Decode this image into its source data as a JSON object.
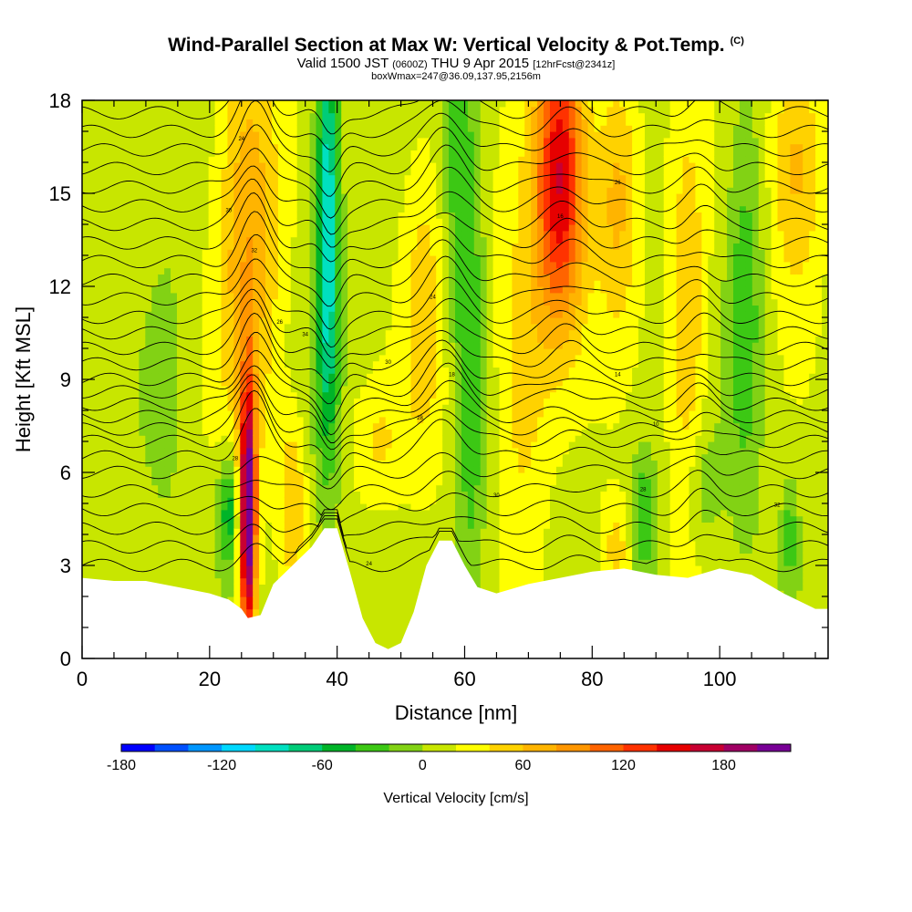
{
  "header": {
    "title": "Wind-Parallel Section at Max W: Vertical Velocity & Pot.Temp.",
    "copyright": "(C)",
    "valid_prefix": "Valid 1500 JST",
    "valid_utc": "(0600Z)",
    "valid_date": "THU 9 Apr 2015",
    "forecast": "[12hrFcst@2341z]",
    "box_info": "boxWmax=247@36.09,137.95,2156m"
  },
  "chart_data": {
    "type": "heatmap",
    "xlabel": "Distance [nm]",
    "ylabel": "Height [Kft MSL]",
    "xlim": [
      0,
      117
    ],
    "ylim": [
      0,
      18
    ],
    "x_ticks": [
      0,
      20,
      40,
      60,
      80,
      100
    ],
    "y_ticks": [
      0,
      3,
      6,
      9,
      12,
      15,
      18
    ],
    "colorbar": {
      "label": "Vertical Velocity [cm/s]",
      "range": [
        -180,
        220
      ],
      "tick_values": [
        -180,
        -120,
        -60,
        0,
        60,
        120,
        180
      ],
      "colors": [
        "#0000ff",
        "#0050ff",
        "#0096ff",
        "#00d8ff",
        "#00e0c0",
        "#00cc78",
        "#00b428",
        "#3cc814",
        "#82d214",
        "#c8e600",
        "#ffff00",
        "#ffd200",
        "#ffb400",
        "#ff9600",
        "#ff6400",
        "#ff3200",
        "#e60000",
        "#c80032",
        "#a00064",
        "#780096"
      ]
    },
    "terrain_kft": [
      [
        0,
        2.6
      ],
      [
        5,
        2.5
      ],
      [
        10,
        2.5
      ],
      [
        15,
        2.3
      ],
      [
        20,
        2.1
      ],
      [
        23,
        1.9
      ],
      [
        25,
        1.6
      ],
      [
        26,
        1.3
      ],
      [
        28,
        1.4
      ],
      [
        30,
        2.4
      ],
      [
        33,
        3.0
      ],
      [
        36,
        3.6
      ],
      [
        38,
        4.2
      ],
      [
        40,
        4.2
      ],
      [
        42,
        2.8
      ],
      [
        44,
        1.3
      ],
      [
        46,
        0.5
      ],
      [
        48,
        0.3
      ],
      [
        50,
        0.5
      ],
      [
        52,
        1.5
      ],
      [
        54,
        3.0
      ],
      [
        56,
        3.8
      ],
      [
        58,
        3.8
      ],
      [
        60,
        3.0
      ],
      [
        62,
        2.3
      ],
      [
        65,
        2.1
      ],
      [
        70,
        2.4
      ],
      [
        75,
        2.6
      ],
      [
        80,
        2.8
      ],
      [
        85,
        2.9
      ],
      [
        90,
        2.7
      ],
      [
        95,
        2.6
      ],
      [
        100,
        2.9
      ],
      [
        105,
        2.7
      ],
      [
        110,
        2.1
      ],
      [
        115,
        1.6
      ],
      [
        117,
        1.6
      ]
    ],
    "updrafts": [
      {
        "x": 26,
        "z": 4.5,
        "sx": 0.9,
        "sz": 3.0,
        "w": 225
      },
      {
        "x": 26,
        "z": 14,
        "sx": 3.5,
        "sz": 5.0,
        "w": 70
      },
      {
        "x": 33,
        "z": 5,
        "sx": 1.5,
        "sz": 2.0,
        "w": 50
      },
      {
        "x": 54,
        "z": 12,
        "sx": 3.0,
        "sz": 4.0,
        "w": 40
      },
      {
        "x": 75,
        "z": 15.5,
        "sx": 2.8,
        "sz": 3.5,
        "w": 150
      },
      {
        "x": 69,
        "z": 9,
        "sx": 3.0,
        "sz": 4.0,
        "w": 45
      },
      {
        "x": 84,
        "z": 15,
        "sx": 2.5,
        "sz": 3.0,
        "w": 60
      },
      {
        "x": 95,
        "z": 10,
        "sx": 2.2,
        "sz": 5.0,
        "w": 50
      },
      {
        "x": 112,
        "z": 16,
        "sx": 3.0,
        "sz": 3.0,
        "w": 60
      },
      {
        "x": 84,
        "z": 3.5,
        "sx": 2.0,
        "sz": 1.2,
        "w": 40
      },
      {
        "x": 46,
        "z": 7,
        "sx": 3.0,
        "sz": 1.5,
        "w": 30
      }
    ],
    "downdrafts": [
      {
        "x": 38.5,
        "z": 14,
        "sx": 1.3,
        "sz": 5.0,
        "w": -115
      },
      {
        "x": 23,
        "z": 4.8,
        "sx": 1.2,
        "sz": 1.4,
        "w": -70
      },
      {
        "x": 59,
        "z": 15,
        "sx": 2.0,
        "sz": 4.5,
        "w": -45
      },
      {
        "x": 61,
        "z": 8,
        "sx": 1.5,
        "sz": 5.0,
        "w": -40
      },
      {
        "x": 104,
        "z": 11,
        "sx": 2.0,
        "sz": 4.5,
        "w": -45
      },
      {
        "x": 88,
        "z": 4.5,
        "sx": 1.5,
        "sz": 1.5,
        "w": -55
      },
      {
        "x": 111,
        "z": 4.0,
        "sx": 1.0,
        "sz": 1.3,
        "w": -40
      },
      {
        "x": 97,
        "z": 5.5,
        "sx": 2.0,
        "sz": 1.5,
        "w": -30
      },
      {
        "x": 13,
        "z": 9,
        "sx": 2.0,
        "sz": 3.0,
        "w": -20
      }
    ],
    "theta_contours": {
      "base_kft": [
        3.0,
        3.6,
        4.2,
        4.8,
        5.4,
        6.0,
        6.5,
        7.0,
        7.4,
        7.8,
        8.2,
        8.6,
        9.0,
        9.5,
        10.0,
        10.5,
        11.0,
        11.6,
        12.2,
        12.8,
        13.4,
        14.0,
        14.6,
        15.2,
        15.8,
        16.4,
        17.0,
        17.6
      ],
      "labels": [
        "28",
        "30",
        "24",
        "32",
        "26",
        "34",
        "30",
        "28",
        "24",
        "18",
        "16",
        "14",
        "10"
      ]
    }
  }
}
